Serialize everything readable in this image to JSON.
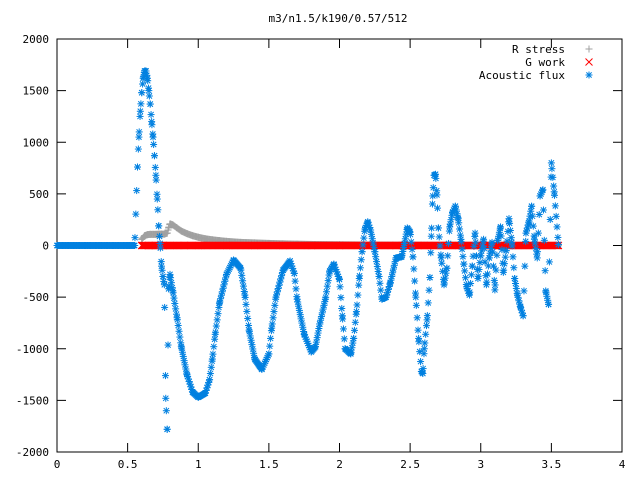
{
  "chart_data": {
    "type": "scatter",
    "title": "m3/n1.5/k190/0.57/512",
    "xlabel": "",
    "ylabel": "",
    "xlim": [
      0,
      4
    ],
    "ylim": [
      -2000,
      2000
    ],
    "x_ticks": [
      "0",
      "0.5",
      "1",
      "1.5",
      "2",
      "2.5",
      "3",
      "3.5",
      "4"
    ],
    "y_ticks": [
      "2000",
      "1500",
      "1000",
      "500",
      "0",
      "-500",
      "-1000",
      "-1500",
      "-2000"
    ],
    "x_tick_values": [
      0,
      0.5,
      1,
      1.5,
      2,
      2.5,
      3,
      3.5,
      4
    ],
    "y_tick_values": [
      2000,
      1500,
      1000,
      500,
      0,
      -500,
      -1000,
      -1500,
      -2000
    ],
    "grid": false,
    "legend_position": "top-right",
    "series": [
      {
        "name": "R stress",
        "marker": "+",
        "color": "#a0a0a0",
        "x": [
          0.6,
          0.62,
          0.64,
          0.66,
          0.68,
          0.7,
          0.72,
          0.74,
          0.76,
          0.78,
          0.79,
          0.8,
          0.82,
          0.85,
          0.88,
          0.92,
          0.96,
          1.0,
          1.05,
          1.1,
          1.15,
          1.2,
          1.3,
          1.4,
          1.5,
          1.6,
          1.7,
          1.8,
          2.0,
          2.2,
          2.4,
          2.6,
          2.8,
          3.0,
          3.2,
          3.4,
          3.55
        ],
        "y": [
          60,
          95,
          105,
          108,
          108,
          108,
          110,
          110,
          110,
          120,
          170,
          210,
          200,
          170,
          140,
          115,
          95,
          80,
          65,
          55,
          47,
          40,
          30,
          25,
          20,
          16,
          13,
          10,
          7,
          5,
          4,
          3,
          2,
          2,
          1,
          1,
          1
        ]
      },
      {
        "name": "G work",
        "marker": "x",
        "color": "#ff0000",
        "x": [
          0.6,
          0.65,
          0.7,
          0.75,
          0.8,
          0.9,
          1.0,
          1.2,
          1.4,
          1.6,
          1.8,
          2.0,
          2.2,
          2.4,
          2.6,
          2.8,
          3.0,
          3.2,
          3.4,
          3.55
        ],
        "y": [
          0,
          0,
          0,
          0,
          0,
          0,
          0,
          0,
          0,
          0,
          0,
          0,
          0,
          0,
          0,
          0,
          0,
          0,
          0,
          0
        ]
      },
      {
        "name": "Acoustic flux",
        "marker": "*",
        "color": "#0080e0",
        "x": [
          0.0,
          0.1,
          0.2,
          0.3,
          0.4,
          0.5,
          0.55,
          0.57,
          0.58,
          0.59,
          0.6,
          0.61,
          0.62,
          0.63,
          0.64,
          0.65,
          0.66,
          0.67,
          0.68,
          0.69,
          0.7,
          0.71,
          0.72,
          0.73,
          0.74,
          0.75,
          0.76,
          0.77,
          0.78,
          0.79,
          0.8,
          0.82,
          0.85,
          0.88,
          0.92,
          0.96,
          1.0,
          1.05,
          1.08,
          1.1,
          1.12,
          1.15,
          1.2,
          1.25,
          1.3,
          1.33,
          1.36,
          1.4,
          1.45,
          1.5,
          1.52,
          1.55,
          1.6,
          1.65,
          1.68,
          1.7,
          1.75,
          1.8,
          1.83,
          1.86,
          1.9,
          1.93,
          1.96,
          2.0,
          2.02,
          2.04,
          2.08,
          2.1,
          2.12,
          2.14,
          2.16,
          2.18,
          2.2,
          2.22,
          2.25,
          2.28,
          2.3,
          2.33,
          2.36,
          2.4,
          2.44,
          2.46,
          2.48,
          2.5,
          2.52,
          2.54,
          2.56,
          2.58,
          2.59,
          2.6,
          2.62,
          2.64,
          2.65,
          2.66,
          2.67,
          2.68,
          2.69,
          2.7,
          2.72,
          2.74,
          2.76,
          2.78,
          2.8,
          2.82,
          2.84,
          2.86,
          2.88,
          2.9,
          2.92,
          2.94,
          2.96,
          2.98,
          3.0,
          3.02,
          3.04,
          3.06,
          3.08,
          3.1,
          3.12,
          3.14,
          3.16,
          3.18,
          3.2,
          3.22,
          3.24,
          3.26,
          3.28,
          3.3,
          3.32,
          3.34,
          3.36,
          3.38,
          3.4,
          3.42,
          3.44,
          3.46,
          3.48,
          3.5,
          3.52,
          3.55
        ],
        "y": [
          0,
          0,
          0,
          0,
          0,
          0,
          0,
          760,
          1050,
          1300,
          1480,
          1620,
          1690,
          1690,
          1620,
          1500,
          1370,
          1200,
          1050,
          870,
          680,
          450,
          190,
          20,
          -200,
          -300,
          -380,
          -1480,
          -1780,
          -420,
          -280,
          -440,
          -700,
          -980,
          -1250,
          -1420,
          -1470,
          -1430,
          -1300,
          -1100,
          -860,
          -560,
          -280,
          -140,
          -220,
          -480,
          -820,
          -1100,
          -1200,
          -1050,
          -800,
          -500,
          -240,
          -150,
          -270,
          -520,
          -860,
          -1030,
          -980,
          -760,
          -520,
          -250,
          -180,
          -330,
          -680,
          -1000,
          -1050,
          -900,
          -640,
          -320,
          -60,
          160,
          230,
          150,
          -60,
          -300,
          -520,
          -500,
          -360,
          -120,
          -110,
          20,
          170,
          130,
          -110,
          -500,
          -900,
          -1220,
          -1240,
          -1000,
          -720,
          -310,
          90,
          480,
          680,
          690,
          490,
          170,
          -120,
          -380,
          -220,
          180,
          320,
          380,
          260,
          60,
          -180,
          -400,
          -480,
          -200,
          120,
          -320,
          -100,
          60,
          -380,
          -120,
          30,
          -430,
          50,
          180,
          -260,
          -50,
          260,
          30,
          -320,
          -480,
          -590,
          -680,
          120,
          220,
          380,
          60,
          -120,
          480,
          540,
          -440,
          -570,
          800,
          520,
          10
        ]
      }
    ]
  }
}
